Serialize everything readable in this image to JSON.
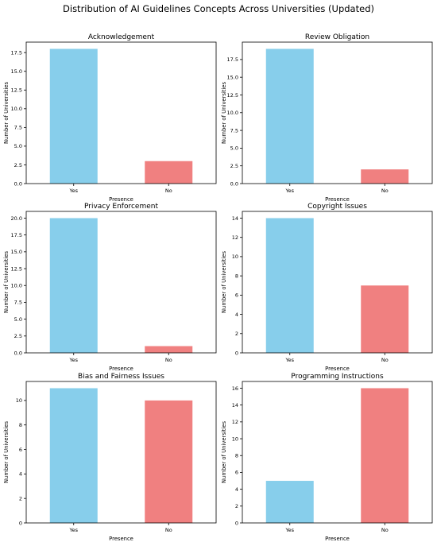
{
  "title": "Distribution of AI Guidelines Concepts Across Universities (Updated)",
  "colors": {
    "yes": "#87ceeb",
    "no": "#f08080"
  },
  "chart_data": [
    {
      "type": "bar",
      "title": "Acknowledgement",
      "categories": [
        "Yes",
        "No"
      ],
      "values": [
        18,
        3
      ],
      "xlabel": "Presence",
      "ylabel": "Number of Universities",
      "ylim": [
        0,
        18.9
      ],
      "yticks": [
        0,
        2.5,
        5,
        7.5,
        10,
        12.5,
        15,
        17.5
      ],
      "ytick_labels": [
        "0.0",
        "2.5",
        "5.0",
        "7.5",
        "10.0",
        "12.5",
        "15.0",
        "17.5"
      ]
    },
    {
      "type": "bar",
      "title": "Review Obligation",
      "categories": [
        "Yes",
        "No"
      ],
      "values": [
        19,
        2
      ],
      "xlabel": "Presence",
      "ylabel": "Number of Universities",
      "ylim": [
        0,
        19.95
      ],
      "yticks": [
        0,
        2.5,
        5,
        7.5,
        10,
        12.5,
        15,
        17.5
      ],
      "ytick_labels": [
        "0.0",
        "2.5",
        "5.0",
        "7.5",
        "10.0",
        "12.5",
        "15.0",
        "17.5"
      ]
    },
    {
      "type": "bar",
      "title": "Privacy Enforcement",
      "categories": [
        "Yes",
        "No"
      ],
      "values": [
        20,
        1
      ],
      "xlabel": "Presence",
      "ylabel": "Number of Universities",
      "ylim": [
        0,
        21
      ],
      "yticks": [
        0,
        2.5,
        5,
        7.5,
        10,
        12.5,
        15,
        17.5,
        20
      ],
      "ytick_labels": [
        "0.0",
        "2.5",
        "5.0",
        "7.5",
        "10.0",
        "12.5",
        "15.0",
        "17.5",
        "20.0"
      ]
    },
    {
      "type": "bar",
      "title": "Copyright Issues",
      "categories": [
        "Yes",
        "No"
      ],
      "values": [
        14,
        7
      ],
      "xlabel": "Presence",
      "ylabel": "Number of Universities",
      "ylim": [
        0,
        14.7
      ],
      "yticks": [
        0,
        2,
        4,
        6,
        8,
        10,
        12,
        14
      ],
      "ytick_labels": [
        "0",
        "2",
        "4",
        "6",
        "8",
        "10",
        "12",
        "14"
      ]
    },
    {
      "type": "bar",
      "title": "Bias and Fairness Issues",
      "categories": [
        "Yes",
        "No"
      ],
      "values": [
        11,
        10
      ],
      "xlabel": "Presence",
      "ylabel": "Number of Universities",
      "ylim": [
        0,
        11.55
      ],
      "yticks": [
        0,
        2,
        4,
        6,
        8,
        10
      ],
      "ytick_labels": [
        "0",
        "2",
        "4",
        "6",
        "8",
        "10"
      ]
    },
    {
      "type": "bar",
      "title": "Programming Instructions",
      "categories": [
        "Yes",
        "No"
      ],
      "values": [
        5,
        16
      ],
      "xlabel": "Presence",
      "ylabel": "Number of Universities",
      "ylim": [
        0,
        16.8
      ],
      "yticks": [
        0,
        2,
        4,
        6,
        8,
        10,
        12,
        14,
        16
      ],
      "ytick_labels": [
        "0",
        "2",
        "4",
        "6",
        "8",
        "10",
        "12",
        "14",
        "16"
      ]
    }
  ]
}
